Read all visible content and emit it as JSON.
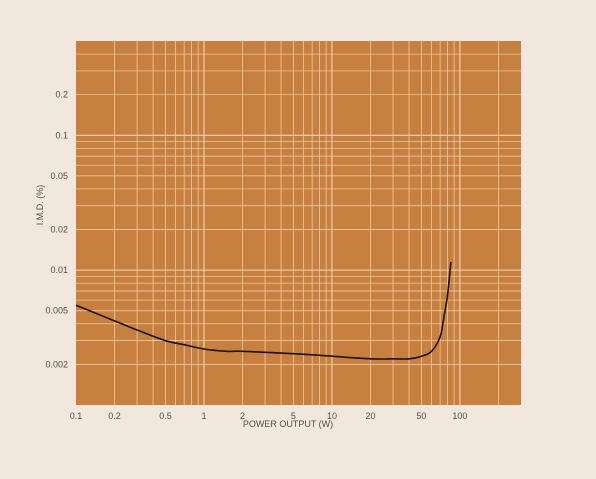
{
  "colors": {
    "page_background": "#f1e7dd",
    "plot_background": "#c8803f",
    "grid_line": "#f4dcc4",
    "curve": "#1a1208",
    "text": "#5a4a48"
  },
  "chart_data": {
    "type": "line",
    "title": "",
    "xlabel": "POWER OUTPUT (W)",
    "ylabel": "I.M.D. (%)",
    "xscale": "log",
    "yscale": "log",
    "xlim": [
      0.1,
      300
    ],
    "ylim": [
      0.001,
      0.5
    ],
    "grid": true,
    "legend": "none",
    "x_ticks": [
      {
        "value": 0.1,
        "label": "0.1"
      },
      {
        "value": 0.2,
        "label": "0.2"
      },
      {
        "value": 0.5,
        "label": "0.5"
      },
      {
        "value": 1,
        "label": "1"
      },
      {
        "value": 2,
        "label": "2"
      },
      {
        "value": 5,
        "label": "5"
      },
      {
        "value": 10,
        "label": "10"
      },
      {
        "value": 20,
        "label": "20"
      },
      {
        "value": 50,
        "label": "50"
      },
      {
        "value": 100,
        "label": "100"
      }
    ],
    "y_ticks": [
      {
        "value": 0.2,
        "label": "0.2"
      },
      {
        "value": 0.1,
        "label": "0.1"
      },
      {
        "value": 0.05,
        "label": "0.05"
      },
      {
        "value": 0.02,
        "label": "0.02"
      },
      {
        "value": 0.01,
        "label": "0.01"
      },
      {
        "value": 0.005,
        "label": "0.005"
      },
      {
        "value": 0.002,
        "label": "0.002"
      }
    ],
    "series": [
      {
        "x": [
          0.1,
          0.15,
          0.2,
          0.3,
          0.5,
          0.7,
          1,
          1.5,
          2,
          5,
          10,
          20,
          30,
          40,
          50,
          60,
          70,
          75,
          80,
          85
        ],
        "y": [
          0.0055,
          0.0047,
          0.0042,
          0.0036,
          0.003,
          0.0028,
          0.0026,
          0.0025,
          0.0025,
          0.0024,
          0.0023,
          0.0022,
          0.0022,
          0.0022,
          0.0023,
          0.0025,
          0.0032,
          0.0045,
          0.0065,
          0.0115
        ]
      }
    ]
  }
}
